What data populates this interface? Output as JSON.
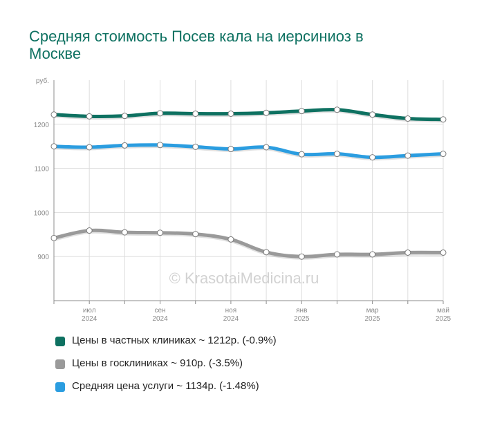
{
  "title": "Средняя стоимость Посев кала на иерсиниоз в Москве",
  "watermark": "© KrasotaiMedicina.ru",
  "colors": {
    "private": "#0e7161",
    "public": "#9a9a9a",
    "average": "#2b9de0"
  },
  "chart_data": {
    "type": "line",
    "y_unit_label": "руб.",
    "ylim": [
      800,
      1300
    ],
    "yticks": [
      900,
      1000,
      1100,
      1200
    ],
    "grid": true,
    "x": [
      "2024-06",
      "2024-07",
      "2024-08",
      "2024-09",
      "2024-10",
      "2024-11",
      "2024-12",
      "2025-01",
      "2025-02",
      "2025-03",
      "2025-04",
      "2025-05"
    ],
    "xtick_labels": [
      {
        "month": "июл",
        "year": "2024",
        "index": 1
      },
      {
        "month": "сен",
        "year": "2024",
        "index": 3
      },
      {
        "month": "ноя",
        "year": "2024",
        "index": 5
      },
      {
        "month": "янв",
        "year": "2025",
        "index": 7
      },
      {
        "month": "мар",
        "year": "2025",
        "index": 9
      },
      {
        "month": "май",
        "year": "2025",
        "index": 11
      }
    ],
    "series": [
      {
        "key": "private",
        "values": [
          1222,
          1218,
          1219,
          1225,
          1224,
          1224,
          1226,
          1230,
          1233,
          1222,
          1213,
          1211
        ]
      },
      {
        "key": "average",
        "values": [
          1150,
          1148,
          1152,
          1153,
          1149,
          1144,
          1148,
          1132,
          1133,
          1125,
          1129,
          1133
        ]
      },
      {
        "key": "public",
        "values": [
          942,
          959,
          955,
          954,
          951,
          939,
          910,
          900,
          905,
          905,
          909,
          909
        ]
      }
    ]
  },
  "legend": [
    {
      "key": "private",
      "label": "Цены в частных клиниках ~ 1212р. (-0.9%)"
    },
    {
      "key": "public",
      "label": "Цены в госклиниках ~ 910р. (-3.5%)"
    },
    {
      "key": "average",
      "label": "Средняя цена услуги ~ 1134р. (-1.48%)"
    }
  ]
}
